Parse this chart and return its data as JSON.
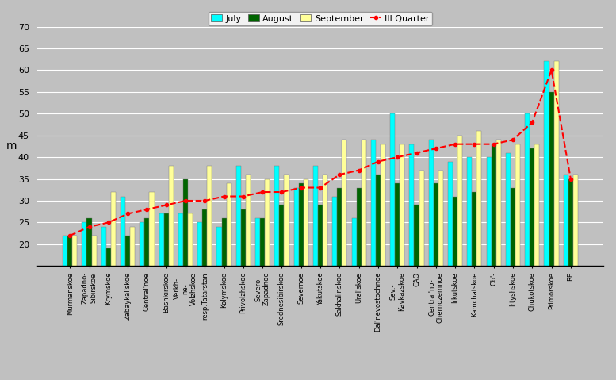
{
  "categories": [
    "Murmanskoe",
    "Zapadno-\nSibirskoe",
    "Krymskoe",
    "Zabaykal'skoe",
    "Central'noe",
    "Bashkirskoe",
    "Verkh-\nne-\nVolzhskoe",
    "resp.Tatarstan",
    "Kolymskoe",
    "Privolzhskoe",
    "Severo-\nZapadnoe",
    "Srednesibirskoe",
    "Severnoe",
    "Yakutskoe",
    "Sakhalinskoe",
    "Ural'skoe",
    "Dal'nevostochnoe",
    "Sev.-\nKavkazskoe",
    "CAO",
    "Central'no-\nChernozemnoe",
    "Irkutskoe",
    "Kamchatskoe",
    "Ob'-",
    "Irtyshskoe",
    "Chukotskoe",
    "Primorskoe",
    "RF"
  ],
  "july": [
    22,
    25,
    24,
    31,
    25,
    27,
    27,
    25,
    24,
    38,
    26,
    38,
    33,
    38,
    31,
    26,
    44,
    50,
    43,
    44,
    39,
    40,
    40,
    41,
    50,
    62,
    36
  ],
  "august": [
    22,
    26,
    19,
    22,
    26,
    27,
    35,
    28,
    26,
    28,
    26,
    29,
    34,
    29,
    33,
    33,
    36,
    34,
    29,
    34,
    31,
    32,
    43,
    33,
    42,
    55,
    35
  ],
  "september": [
    22,
    22,
    32,
    24,
    32,
    38,
    27,
    38,
    34,
    36,
    35,
    36,
    35,
    36,
    44,
    44,
    43,
    43,
    37,
    37,
    45,
    46,
    44,
    43,
    43,
    62,
    36
  ],
  "quarter": [
    22,
    24,
    25,
    27,
    28,
    29,
    30,
    30,
    31,
    31,
    32,
    32,
    33,
    33,
    36,
    37,
    39,
    40,
    41,
    42,
    43,
    43,
    43,
    44,
    48,
    60,
    35
  ],
  "bar_width": 0.25,
  "july_color": "#00FFFF",
  "august_color": "#006400",
  "september_color": "#FFFF99",
  "quarter_color": "#FF0000",
  "background_color": "#C0C0C0",
  "ylabel": "m",
  "ylim_min": 15,
  "ylim_max": 70,
  "yticks": [
    20,
    25,
    30,
    35,
    40,
    45,
    50,
    55,
    60,
    65,
    70
  ],
  "legend_labels": [
    "July",
    "August",
    "September",
    "III Quarter"
  ],
  "figw": 7.77,
  "figh": 4.79,
  "dpi": 100
}
